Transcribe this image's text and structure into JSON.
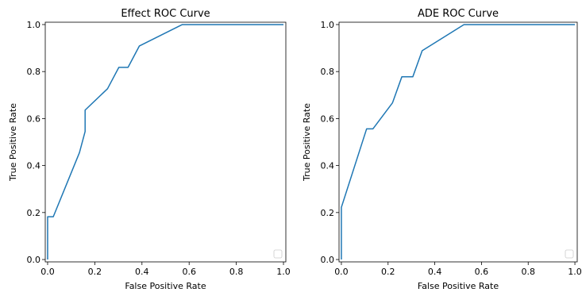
{
  "chart_data": [
    {
      "type": "line",
      "title": "Effect ROC Curve",
      "xlabel": "False Positive Rate",
      "ylabel": "True Positive Rate",
      "xlim": [
        0,
        1.0
      ],
      "ylim": [
        0,
        1.0
      ],
      "xticks": [
        "0.0",
        "0.2",
        "0.4",
        "0.6",
        "0.8",
        "1.0"
      ],
      "yticks": [
        "0.0",
        "0.2",
        "0.4",
        "0.6",
        "0.8",
        "1.0"
      ],
      "grid": false,
      "legend": "lower right",
      "series": [
        {
          "color": "#1f77b4",
          "x": [
            0.0,
            0.0,
            0.0,
            0.024,
            0.135,
            0.159,
            0.159,
            0.254,
            0.302,
            0.341,
            0.389,
            0.571,
            1.0
          ],
          "y": [
            0.0,
            0.0,
            0.182,
            0.182,
            0.455,
            0.545,
            0.636,
            0.727,
            0.818,
            0.818,
            0.909,
            1.0,
            1.0
          ]
        }
      ]
    },
    {
      "type": "line",
      "title": "ADE ROC Curve",
      "xlabel": "False Positive Rate",
      "ylabel": "True Positive Rate",
      "xlim": [
        0,
        1.0
      ],
      "ylim": [
        0,
        1.0
      ],
      "xticks": [
        "0.0",
        "0.2",
        "0.4",
        "0.6",
        "0.8",
        "1.0"
      ],
      "yticks": [
        "0.0",
        "0.2",
        "0.4",
        "0.6",
        "0.8",
        "1.0"
      ],
      "grid": false,
      "legend": "lower right",
      "series": [
        {
          "color": "#1f77b4",
          "x": [
            0.0,
            0.0,
            0.0,
            0.108,
            0.135,
            0.219,
            0.259,
            0.306,
            0.346,
            0.525,
            1.0
          ],
          "y": [
            0.0,
            0.0,
            0.222,
            0.556,
            0.556,
            0.667,
            0.778,
            0.778,
            0.889,
            1.0,
            1.0
          ]
        }
      ]
    }
  ]
}
